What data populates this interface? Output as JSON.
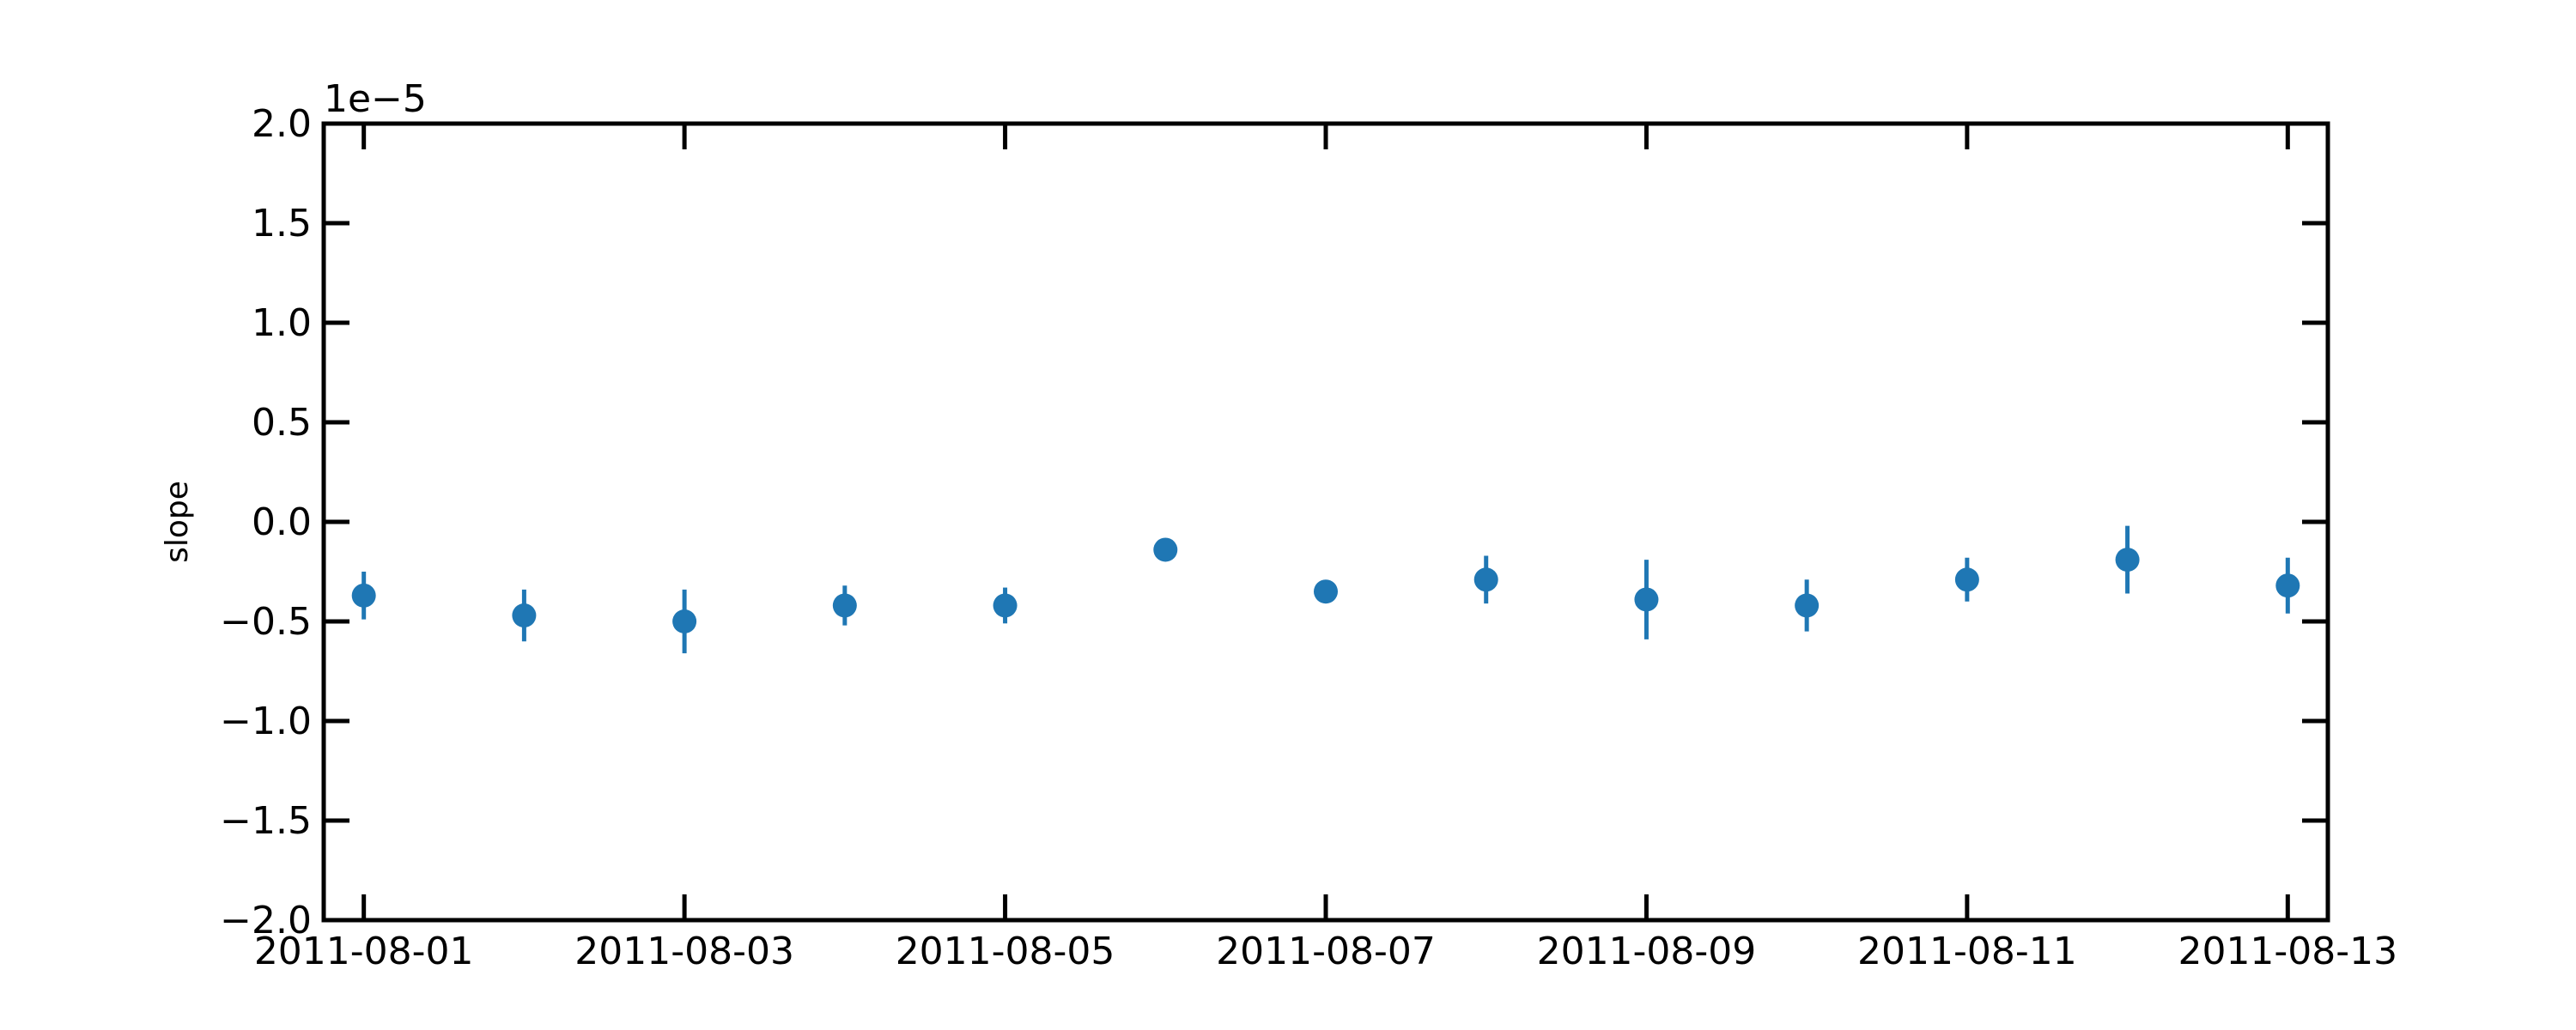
{
  "chart_data": {
    "type": "scatter",
    "title": "",
    "xlabel": "",
    "ylabel": "slope",
    "y_offset_label": "1e−5",
    "x_ticks": [
      "2011-08-01",
      "2011-08-03",
      "2011-08-05",
      "2011-08-07",
      "2011-08-09",
      "2011-08-11",
      "2011-08-13"
    ],
    "xlim": [
      "2011-07-31 18:00",
      "2011-08-13 06:00"
    ],
    "y_ticks": [
      2.0,
      1.5,
      1.0,
      0.5,
      0.0,
      -0.5,
      -1.0,
      -1.5,
      -2.0
    ],
    "y_tick_labels": [
      "2.0",
      "1.5",
      "1.0",
      "0.5",
      "0.0",
      "−0.5",
      "−1.0",
      "−1.5",
      "−2.0"
    ],
    "ylim": [
      -2.0,
      2.0
    ],
    "grid": false,
    "marker_color": "#1f77b4",
    "series": [
      {
        "x": [
          "2011-08-01",
          "2011-08-02",
          "2011-08-03",
          "2011-08-04",
          "2011-08-05",
          "2011-08-06",
          "2011-08-07",
          "2011-08-08",
          "2011-08-09",
          "2011-08-10",
          "2011-08-11",
          "2011-08-12",
          "2011-08-13"
        ],
        "y": [
          -0.37,
          -0.47,
          -0.5,
          -0.42,
          -0.42,
          -0.14,
          -0.35,
          -0.29,
          -0.39,
          -0.42,
          -0.29,
          -0.19,
          -0.32
        ],
        "yerr": [
          0.12,
          0.13,
          0.16,
          0.1,
          0.09,
          0.0,
          0.0,
          0.12,
          0.2,
          0.13,
          0.11,
          0.17,
          0.14
        ]
      }
    ]
  }
}
